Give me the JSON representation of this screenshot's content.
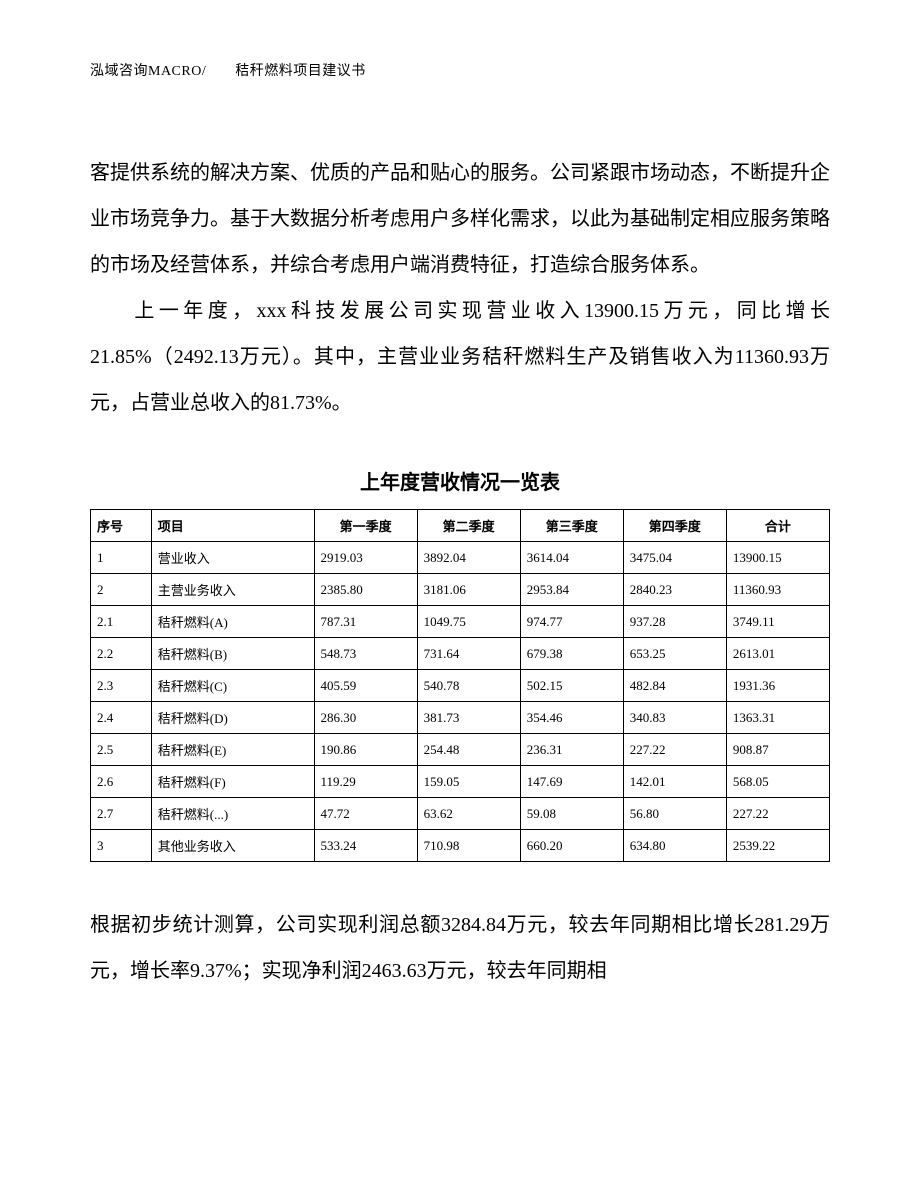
{
  "header": "泓域咨询MACRO/　　秸秆燃料项目建议书",
  "paragraph1": "客提供系统的解决方案、优质的产品和贴心的服务。公司紧跟市场动态，不断提升企业市场竞争力。基于大数据分析考虑用户多样化需求，以此为基础制定相应服务策略的市场及经营体系，并综合考虑用户端消费特征，打造综合服务体系。",
  "paragraph2": "上一年度，xxx科技发展公司实现营业收入13900.15万元，同比增长21.85%（2492.13万元）。其中，主营业业务秸秆燃料生产及销售收入为11360.93万元，占营业总收入的81.73%。",
  "table": {
    "title": "上年度营收情况一览表",
    "columns": [
      "序号",
      "项目",
      "第一季度",
      "第二季度",
      "第三季度",
      "第四季度",
      "合计"
    ],
    "rows": [
      [
        "1",
        "营业收入",
        "2919.03",
        "3892.04",
        "3614.04",
        "3475.04",
        "13900.15"
      ],
      [
        "2",
        "主营业务收入",
        "2385.80",
        "3181.06",
        "2953.84",
        "2840.23",
        "11360.93"
      ],
      [
        "2.1",
        "秸秆燃料(A)",
        "787.31",
        "1049.75",
        "974.77",
        "937.28",
        "3749.11"
      ],
      [
        "2.2",
        "秸秆燃料(B)",
        "548.73",
        "731.64",
        "679.38",
        "653.25",
        "2613.01"
      ],
      [
        "2.3",
        "秸秆燃料(C)",
        "405.59",
        "540.78",
        "502.15",
        "482.84",
        "1931.36"
      ],
      [
        "2.4",
        "秸秆燃料(D)",
        "286.30",
        "381.73",
        "354.46",
        "340.83",
        "1363.31"
      ],
      [
        "2.5",
        "秸秆燃料(E)",
        "190.86",
        "254.48",
        "236.31",
        "227.22",
        "908.87"
      ],
      [
        "2.6",
        "秸秆燃料(F)",
        "119.29",
        "159.05",
        "147.69",
        "142.01",
        "568.05"
      ],
      [
        "2.7",
        "秸秆燃料(...)",
        "47.72",
        "63.62",
        "59.08",
        "56.80",
        "227.22"
      ],
      [
        "3",
        "其他业务收入",
        "533.24",
        "710.98",
        "660.20",
        "634.80",
        "2539.22"
      ]
    ],
    "border_color": "#000000",
    "header_font_weight": "bold",
    "cell_fontsize": 13
  },
  "paragraph3": "根据初步统计测算，公司实现利润总额3284.84万元，较去年同期相比增长281.29万元，增长率9.37%；实现净利润2463.63万元，较去年同期相"
}
